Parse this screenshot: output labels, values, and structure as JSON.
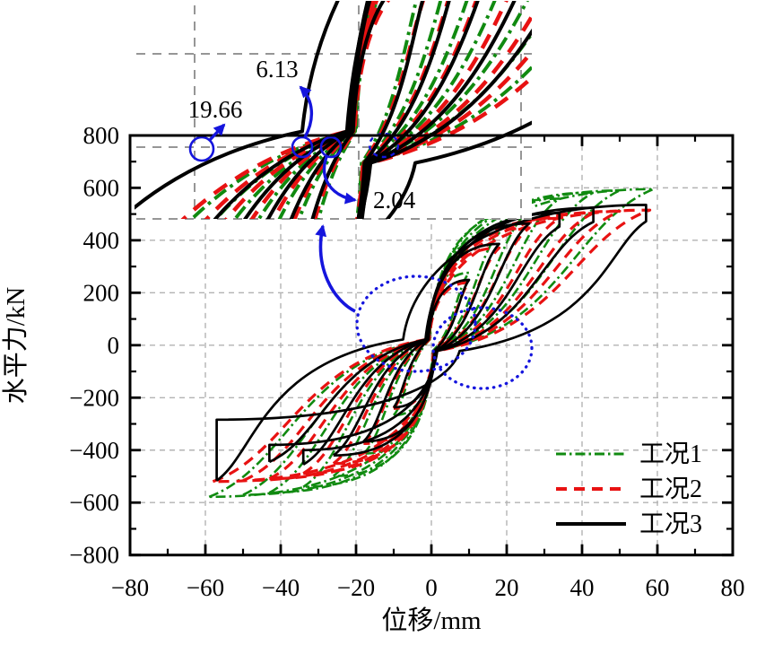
{
  "figure": {
    "xlabel": "位移/mm",
    "ylabel": "水平力/kN",
    "x_tick_labels": [
      "−80",
      "−60",
      "−40",
      "−20",
      "0",
      "20",
      "40",
      "60",
      "80"
    ],
    "y_tick_labels": [
      "800",
      "600",
      "400",
      "200",
      "0",
      "−200",
      "−400",
      "−600",
      "−800"
    ]
  },
  "legend": {
    "items": [
      {
        "label": "工况1",
        "color": "#108a10",
        "style": "dashdot"
      },
      {
        "label": "工况2",
        "color": "#e81212",
        "style": "dashed"
      },
      {
        "label": "工况3",
        "color": "#000000",
        "style": "solid"
      }
    ]
  },
  "annotations": {
    "v1": "19.66",
    "v2": "6.13",
    "v3": "2.04"
  },
  "chart_data": {
    "type": "line",
    "subtype": "hysteresis-loops",
    "xlabel": "位移/mm",
    "ylabel": "水平力/kN",
    "xlim": [
      -80,
      80
    ],
    "ylim": [
      -800,
      800
    ],
    "x_major_step": 20,
    "x_minor_step": 10,
    "y_major_step": 200,
    "y_minor_step": 100,
    "grid": "dashed-gray",
    "legend_position": "lower-right-inside",
    "annotation_values": [
      19.66,
      6.13,
      2.04
    ],
    "annotation_meaning": "residual displacements (mm) marked in zoom inset",
    "inset": {
      "description": "zoomed view of pinched region near origin",
      "x_window_mm": [
        -29,
        25
      ],
      "f_window_kN": [
        -102,
        204
      ]
    },
    "series": [
      {
        "name": "工况1",
        "color": "#108a10",
        "style": "dashdot",
        "width": 2.6,
        "cycles": [
          {
            "d": 10,
            "fp": 276,
            "fn": -267
          },
          {
            "d": 18,
            "fp": 428,
            "fn": -413
          },
          {
            "d": 26,
            "fp": 516,
            "fn": -499
          },
          {
            "d": 34,
            "fp": 559,
            "fn": -540
          },
          {
            "d": 43,
            "fp": 582,
            "fn": -562
          },
          {
            "d": 50,
            "fp": 590,
            "fn": -570
          },
          {
            "d": 59,
            "fp": 595,
            "fn": -578
          }
        ]
      },
      {
        "name": "工况2",
        "color": "#e81212",
        "style": "dashed",
        "width": 3.2,
        "cycles": [
          {
            "d": 10,
            "fp": 239,
            "fn": -241
          },
          {
            "d": 18,
            "fp": 371,
            "fn": -375
          },
          {
            "d": 26,
            "fp": 447,
            "fn": -451
          },
          {
            "d": 34,
            "fp": 484,
            "fn": -489
          },
          {
            "d": 43,
            "fp": 504,
            "fn": -509
          },
          {
            "d": 50,
            "fp": 511,
            "fn": -516
          },
          {
            "d": 58,
            "fp": 515,
            "fn": -520
          }
        ]
      },
      {
        "name": "工况3",
        "color": "#000000",
        "style": "solid",
        "width": 2.7,
        "cycles": [
          {
            "d": 10,
            "fp": 249,
            "fn": -237
          },
          {
            "d": 18,
            "fp": 386,
            "fn": -367
          },
          {
            "d": 26,
            "fp": 464,
            "fn": -420
          },
          {
            "d": 34,
            "fp": 504,
            "fpd": 452,
            "fnr": -400,
            "fn": -455
          },
          {
            "d": 43,
            "fp": 524,
            "fpd": 470,
            "fnr": -380,
            "fn": -445
          },
          {
            "d": 57,
            "fp": 535,
            "fpd": 472,
            "fnr": -284,
            "fn": -516,
            "big": true
          }
        ]
      }
    ]
  }
}
